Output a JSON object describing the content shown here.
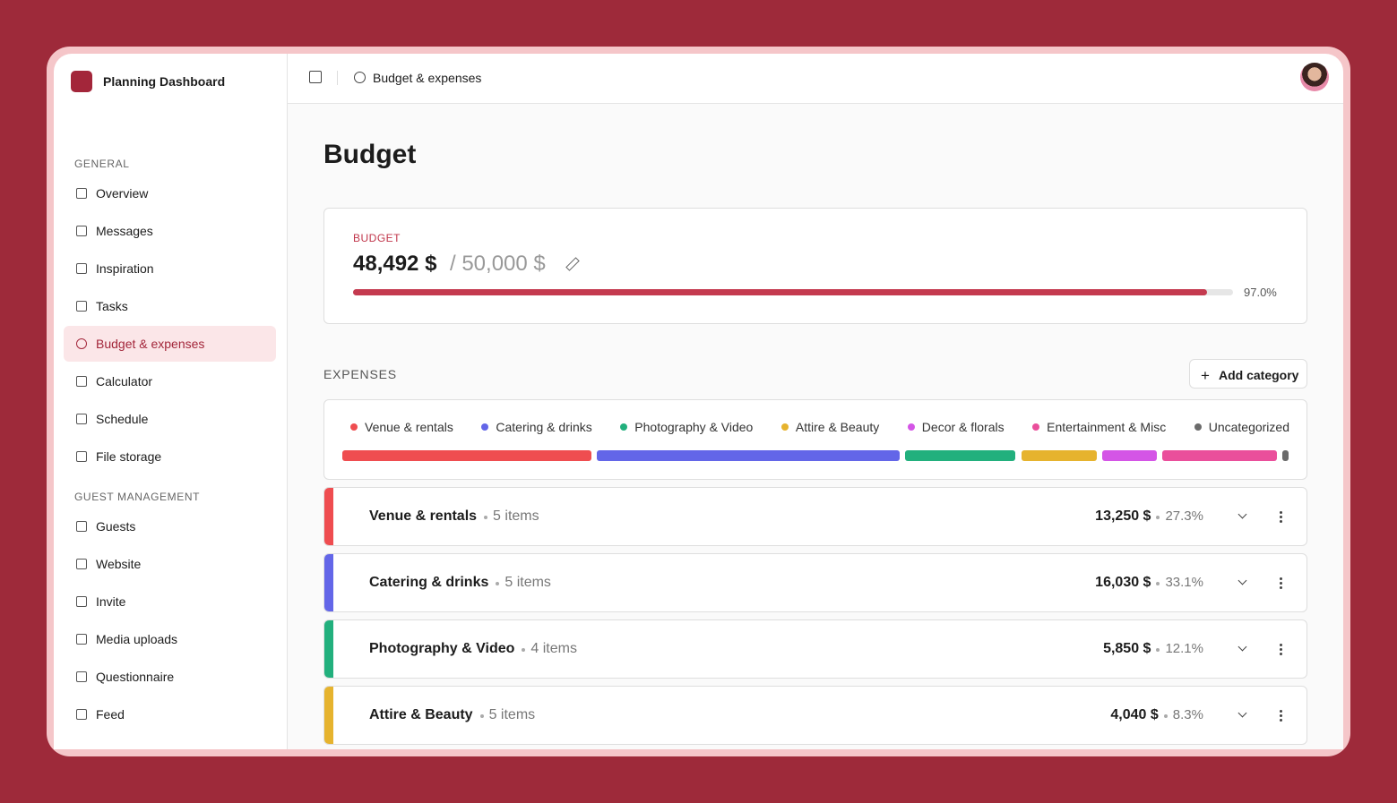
{
  "sidebar": {
    "brand": "Planning Dashboard",
    "active": "Budget & expenses",
    "sections": [
      {
        "title": "GENERAL",
        "items": [
          "Overview",
          "Messages",
          "Inspiration",
          "Tasks",
          "Budget & expenses",
          "Calculator",
          "Schedule",
          "File storage"
        ]
      },
      {
        "title": "GUEST MANAGEMENT",
        "items": [
          "Guests",
          "Website",
          "Invite",
          "Media uploads",
          "Questionnaire",
          "Feed"
        ]
      }
    ]
  },
  "header": {
    "breadcrumb": "Budget & expenses"
  },
  "page": {
    "title": "Budget"
  },
  "budget": {
    "label": "BUDGET",
    "spent": "48,492 $",
    "total": "/ 50,000 $",
    "progress": {
      "value": 97.0,
      "label": "97.0%"
    }
  },
  "expenses": {
    "title": "EXPENSES",
    "add_button": "Add category",
    "legend": [
      {
        "name": "Venue & rentals",
        "color": "#ef4d50",
        "share": 27.3
      },
      {
        "name": "Catering & drinks",
        "color": "#6366e8",
        "share": 33.1
      },
      {
        "name": "Photography & Video",
        "color": "#22b07d",
        "share": 12.1
      },
      {
        "name": "Attire & Beauty",
        "color": "#e6b32e",
        "share": 8.3
      },
      {
        "name": "Decor & florals",
        "color": "#d455e6",
        "share": 6.0
      },
      {
        "name": "Entertainment & Misc",
        "color": "#ea4f9b",
        "share": 12.5
      },
      {
        "name": "Uncategorized",
        "color": "#6b6b6b",
        "share": 0.7
      }
    ],
    "categories": [
      {
        "name": "Venue & rentals",
        "items": "5 items",
        "amount": "13,250 $",
        "percent": "27.3%"
      },
      {
        "name": "Catering & drinks",
        "items": "5 items",
        "amount": "16,030 $",
        "percent": "33.1%"
      },
      {
        "name": "Photography & Video",
        "items": "4 items",
        "amount": "5,850 $",
        "percent": "12.1%"
      },
      {
        "name": "Attire & Beauty",
        "items": "5 items",
        "amount": "4,040 $",
        "percent": "8.3%"
      }
    ]
  }
}
